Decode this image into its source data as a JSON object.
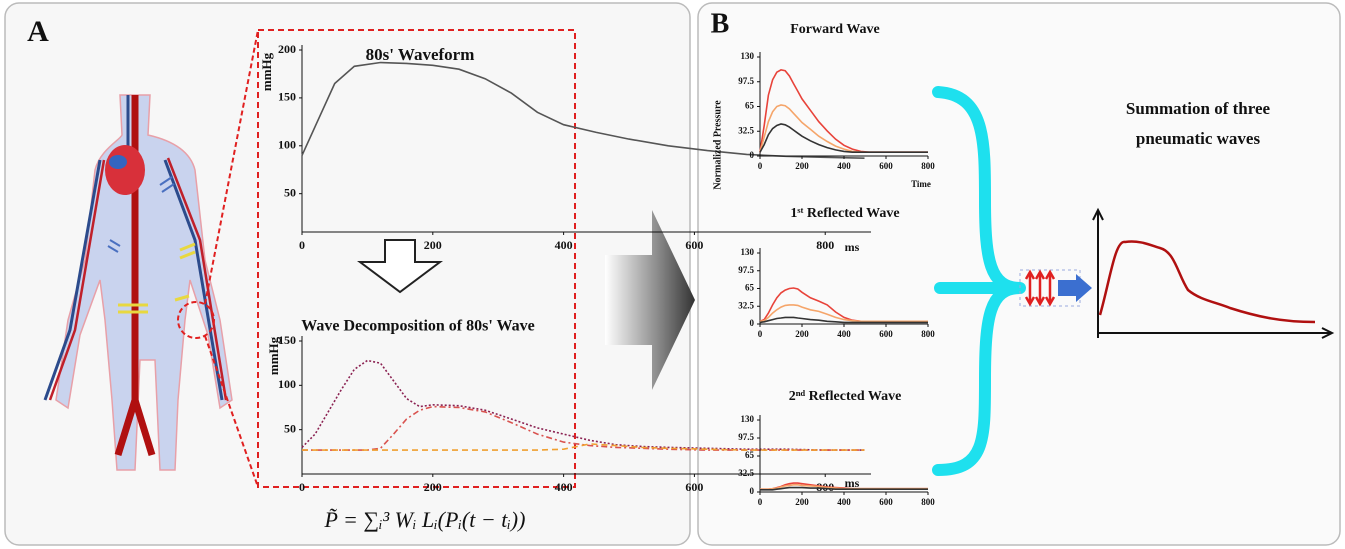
{
  "panels": {
    "a_label": "A",
    "b_label": "B"
  },
  "formula": "P̃ = ∑ᵢ³ Wᵢ Lᵢ(Pᵢ(t − tᵢ))",
  "summation_title": [
    "Summation of three",
    "pneumatic waves"
  ],
  "chart_data": [
    {
      "type": "line",
      "title": "80s' Waveform",
      "ylabel": "mmHg",
      "xlabel": "ms",
      "x": [
        0,
        20,
        50,
        80,
        120,
        160,
        200,
        240,
        280,
        320,
        360,
        400,
        450,
        500,
        560,
        620,
        680,
        740,
        800,
        860
      ],
      "xlim": [
        0,
        870
      ],
      "xticks": [
        0,
        200,
        400,
        600,
        800
      ],
      "ylim": [
        10,
        200
      ],
      "yticks": [
        50,
        100,
        150,
        200
      ],
      "series": [
        {
          "color": "#555555",
          "style": "solid",
          "values": [
            90,
            120,
            165,
            183,
            187,
            186,
            184,
            180,
            170,
            155,
            135,
            122,
            114,
            107,
            100,
            95,
            91,
            89,
            88,
            87
          ]
        }
      ]
    },
    {
      "type": "line",
      "title": "Wave Decomposition of 80s' Wave",
      "ylabel": "mmHg",
      "xlabel": "ms",
      "x": [
        0,
        20,
        40,
        60,
        80,
        100,
        120,
        140,
        160,
        180,
        200,
        240,
        280,
        320,
        360,
        400,
        440,
        480,
        520,
        560,
        620,
        680,
        740,
        800,
        860
      ],
      "xlim": [
        0,
        870
      ],
      "xticks": [
        0,
        200,
        400,
        600,
        800
      ],
      "ylim": [
        0,
        150
      ],
      "yticks": [
        50,
        100,
        150
      ],
      "series": [
        {
          "color": "#8b2252",
          "style": "dotted",
          "values": [
            30,
            45,
            70,
            95,
            118,
            128,
            125,
            105,
            85,
            76,
            78,
            77,
            72,
            62,
            52,
            45,
            38,
            33,
            31,
            30,
            29,
            28,
            28,
            27,
            27
          ]
        },
        {
          "color": "#d9534f",
          "style": "dashdot",
          "values": [
            27,
            27,
            27,
            27,
            27,
            27,
            29,
            45,
            62,
            72,
            76,
            75,
            70,
            58,
            45,
            36,
            32,
            30,
            29,
            28,
            27,
            27,
            27,
            27,
            27
          ]
        },
        {
          "color": "#f0a030",
          "style": "dashed",
          "values": [
            27,
            27,
            27,
            27,
            27,
            27,
            27,
            27,
            27,
            27,
            27,
            27,
            27,
            27,
            27,
            28,
            34,
            32,
            30,
            29,
            28,
            27,
            27,
            27,
            27
          ]
        }
      ]
    },
    {
      "type": "line",
      "title": "Forward Wave",
      "ylabel": "Normalized Pressure",
      "xlabel": "Time",
      "x": [
        0,
        20,
        40,
        60,
        80,
        100,
        120,
        140,
        160,
        180,
        200,
        240,
        280,
        320,
        360,
        400,
        440,
        480,
        520,
        560,
        640,
        720,
        800
      ],
      "xlim": [
        0,
        800
      ],
      "xticks": [
        0,
        200,
        400,
        600,
        800
      ],
      "ylim": [
        0,
        130
      ],
      "yticks": [
        0,
        32.5,
        65,
        97.5,
        130
      ],
      "series": [
        {
          "color": "#e8433a",
          "style": "solid",
          "values": [
            5,
            40,
            80,
            100,
            110,
            113,
            112,
            105,
            95,
            85,
            75,
            60,
            45,
            33,
            22,
            14,
            9,
            6,
            5,
            5,
            5,
            5,
            5
          ]
        },
        {
          "color": "#f5a56a",
          "style": "solid",
          "values": [
            5,
            25,
            45,
            58,
            65,
            67,
            66,
            62,
            56,
            50,
            44,
            35,
            26,
            19,
            13,
            9,
            6,
            5,
            5,
            5,
            5,
            5,
            5
          ]
        },
        {
          "color": "#333333",
          "style": "solid",
          "values": [
            5,
            15,
            28,
            36,
            40,
            42,
            41,
            38,
            34,
            30,
            26,
            20,
            15,
            11,
            8,
            6,
            5,
            5,
            5,
            5,
            5,
            5,
            5
          ]
        }
      ]
    },
    {
      "type": "line",
      "title": "1ˢᵗ Reflected Wave",
      "x": [
        0,
        20,
        40,
        60,
        80,
        100,
        120,
        140,
        160,
        180,
        200,
        240,
        280,
        320,
        360,
        400,
        440,
        480,
        520,
        560,
        640,
        720,
        800
      ],
      "xlim": [
        0,
        800
      ],
      "xticks": [
        0,
        200,
        400,
        600,
        800
      ],
      "ylim": [
        0,
        130
      ],
      "yticks": [
        0,
        32.5,
        65,
        97.5,
        130
      ],
      "series": [
        {
          "color": "#e8433a",
          "style": "solid",
          "values": [
            5,
            8,
            20,
            35,
            48,
            57,
            62,
            65,
            66,
            64,
            58,
            48,
            42,
            35,
            22,
            12,
            7,
            5,
            5,
            5,
            5,
            5,
            5
          ]
        },
        {
          "color": "#f5a56a",
          "style": "solid",
          "values": [
            5,
            6,
            12,
            20,
            26,
            31,
            34,
            35,
            35,
            34,
            31,
            26,
            23,
            18,
            12,
            8,
            6,
            5,
            5,
            5,
            5,
            5,
            5
          ]
        },
        {
          "color": "#333333",
          "style": "solid",
          "values": [
            3,
            4,
            6,
            8,
            10,
            11,
            12,
            12,
            12,
            11,
            10,
            8,
            7,
            5,
            4,
            3,
            3,
            3,
            3,
            3,
            3,
            3,
            3
          ]
        }
      ]
    },
    {
      "type": "line",
      "title": "2ⁿᵈ Reflected Wave",
      "x": [
        0,
        20,
        40,
        60,
        80,
        100,
        120,
        140,
        160,
        180,
        200,
        240,
        280,
        320,
        360,
        400,
        440,
        480,
        520,
        560,
        640,
        720,
        800
      ],
      "xlim": [
        0,
        800
      ],
      "xticks": [
        0,
        200,
        400,
        600,
        800
      ],
      "ylim": [
        0,
        130
      ],
      "yticks": [
        0,
        32.5,
        65,
        97.5,
        130
      ],
      "series": [
        {
          "color": "#e8433a",
          "style": "solid",
          "values": [
            5,
            5,
            5,
            6,
            8,
            10,
            13,
            15,
            16,
            16,
            15,
            13,
            11,
            9,
            8,
            7,
            6,
            6,
            6,
            6,
            6,
            6,
            6
          ]
        },
        {
          "color": "#f5a56a",
          "style": "solid",
          "values": [
            5,
            5,
            5,
            6,
            7,
            9,
            11,
            12,
            13,
            13,
            12,
            11,
            10,
            8,
            7,
            6,
            6,
            6,
            6,
            6,
            6,
            6,
            6
          ]
        },
        {
          "color": "#333333",
          "style": "solid",
          "values": [
            4,
            4,
            4,
            4,
            5,
            6,
            7,
            8,
            8,
            8,
            8,
            7,
            7,
            6,
            5,
            5,
            5,
            5,
            5,
            5,
            5,
            5,
            5
          ]
        }
      ]
    }
  ]
}
